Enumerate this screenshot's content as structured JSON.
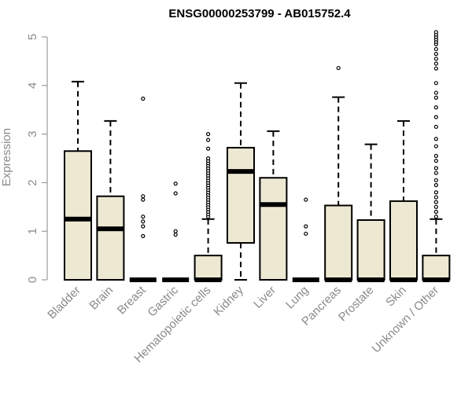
{
  "chart_data": {
    "type": "boxplot",
    "title": "ENSG00000253799 - AB015752.4",
    "xlabel": "",
    "ylabel": "Expression",
    "ylim": [
      0,
      5
    ],
    "yticks": [
      0,
      1,
      2,
      3,
      4,
      5
    ],
    "grid": false,
    "colors": {
      "box_fill": "#ede8d2",
      "stroke": "#000000",
      "axis_text": "#8a8a8a"
    },
    "categories": [
      "Bladder",
      "Brain",
      "Breast",
      "Gastric",
      "Hematopoietic cells",
      "Kidney",
      "Liver",
      "Lung",
      "Pancreas",
      "Prostate",
      "Skin",
      "Unknown / Other"
    ],
    "boxes": [
      {
        "min": 0,
        "q1": 0,
        "median": 1.25,
        "q3": 2.65,
        "max": 4.08,
        "outliers": []
      },
      {
        "min": 0,
        "q1": 0,
        "median": 1.05,
        "q3": 1.72,
        "max": 3.27,
        "outliers": []
      },
      {
        "min": 0,
        "q1": 0,
        "median": 0,
        "q3": 0,
        "max": 0,
        "outliers": [
          0.9,
          1.1,
          1.2,
          1.3,
          1.65,
          1.72,
          3.73
        ]
      },
      {
        "min": 0,
        "q1": 0,
        "median": 0,
        "q3": 0,
        "max": 0,
        "outliers": [
          0.93,
          1.0,
          1.78,
          1.98
        ]
      },
      {
        "min": 0,
        "q1": 0,
        "median": 0,
        "q3": 0.5,
        "max": 1.25,
        "outliers": [
          1.3,
          1.35,
          1.4,
          1.45,
          1.5,
          1.55,
          1.6,
          1.65,
          1.7,
          1.75,
          1.8,
          1.85,
          1.9,
          1.95,
          2.0,
          2.05,
          2.1,
          2.15,
          2.2,
          2.25,
          2.3,
          2.35,
          2.4,
          2.45,
          2.5,
          2.7,
          2.88,
          3.0
        ]
      },
      {
        "min": 0,
        "q1": 0.76,
        "median": 2.23,
        "q3": 2.72,
        "max": 4.05,
        "outliers": []
      },
      {
        "min": 0,
        "q1": 0,
        "median": 1.55,
        "q3": 2.1,
        "max": 3.06,
        "outliers": []
      },
      {
        "min": 0,
        "q1": 0,
        "median": 0,
        "q3": 0,
        "max": 0,
        "outliers": [
          0.95,
          1.1,
          1.65
        ]
      },
      {
        "min": 0,
        "q1": 0,
        "median": 0,
        "q3": 1.53,
        "max": 3.76,
        "outliers": [
          4.36
        ]
      },
      {
        "min": 0,
        "q1": 0,
        "median": 0,
        "q3": 1.23,
        "max": 2.79,
        "outliers": []
      },
      {
        "min": 0,
        "q1": 0,
        "median": 0,
        "q3": 1.62,
        "max": 3.27,
        "outliers": []
      },
      {
        "min": 0,
        "q1": 0,
        "median": 0,
        "q3": 0.5,
        "max": 1.25,
        "outliers": [
          1.3,
          1.4,
          1.5,
          1.6,
          1.7,
          1.8,
          1.95,
          2.05,
          2.2,
          2.3,
          2.45,
          2.55,
          2.75,
          2.9,
          3.15,
          3.35,
          3.55,
          3.75,
          3.85,
          4.05,
          4.35,
          4.45,
          4.55,
          4.65,
          4.75,
          4.85,
          4.9,
          4.95,
          5.0,
          5.05,
          5.1
        ]
      }
    ]
  }
}
